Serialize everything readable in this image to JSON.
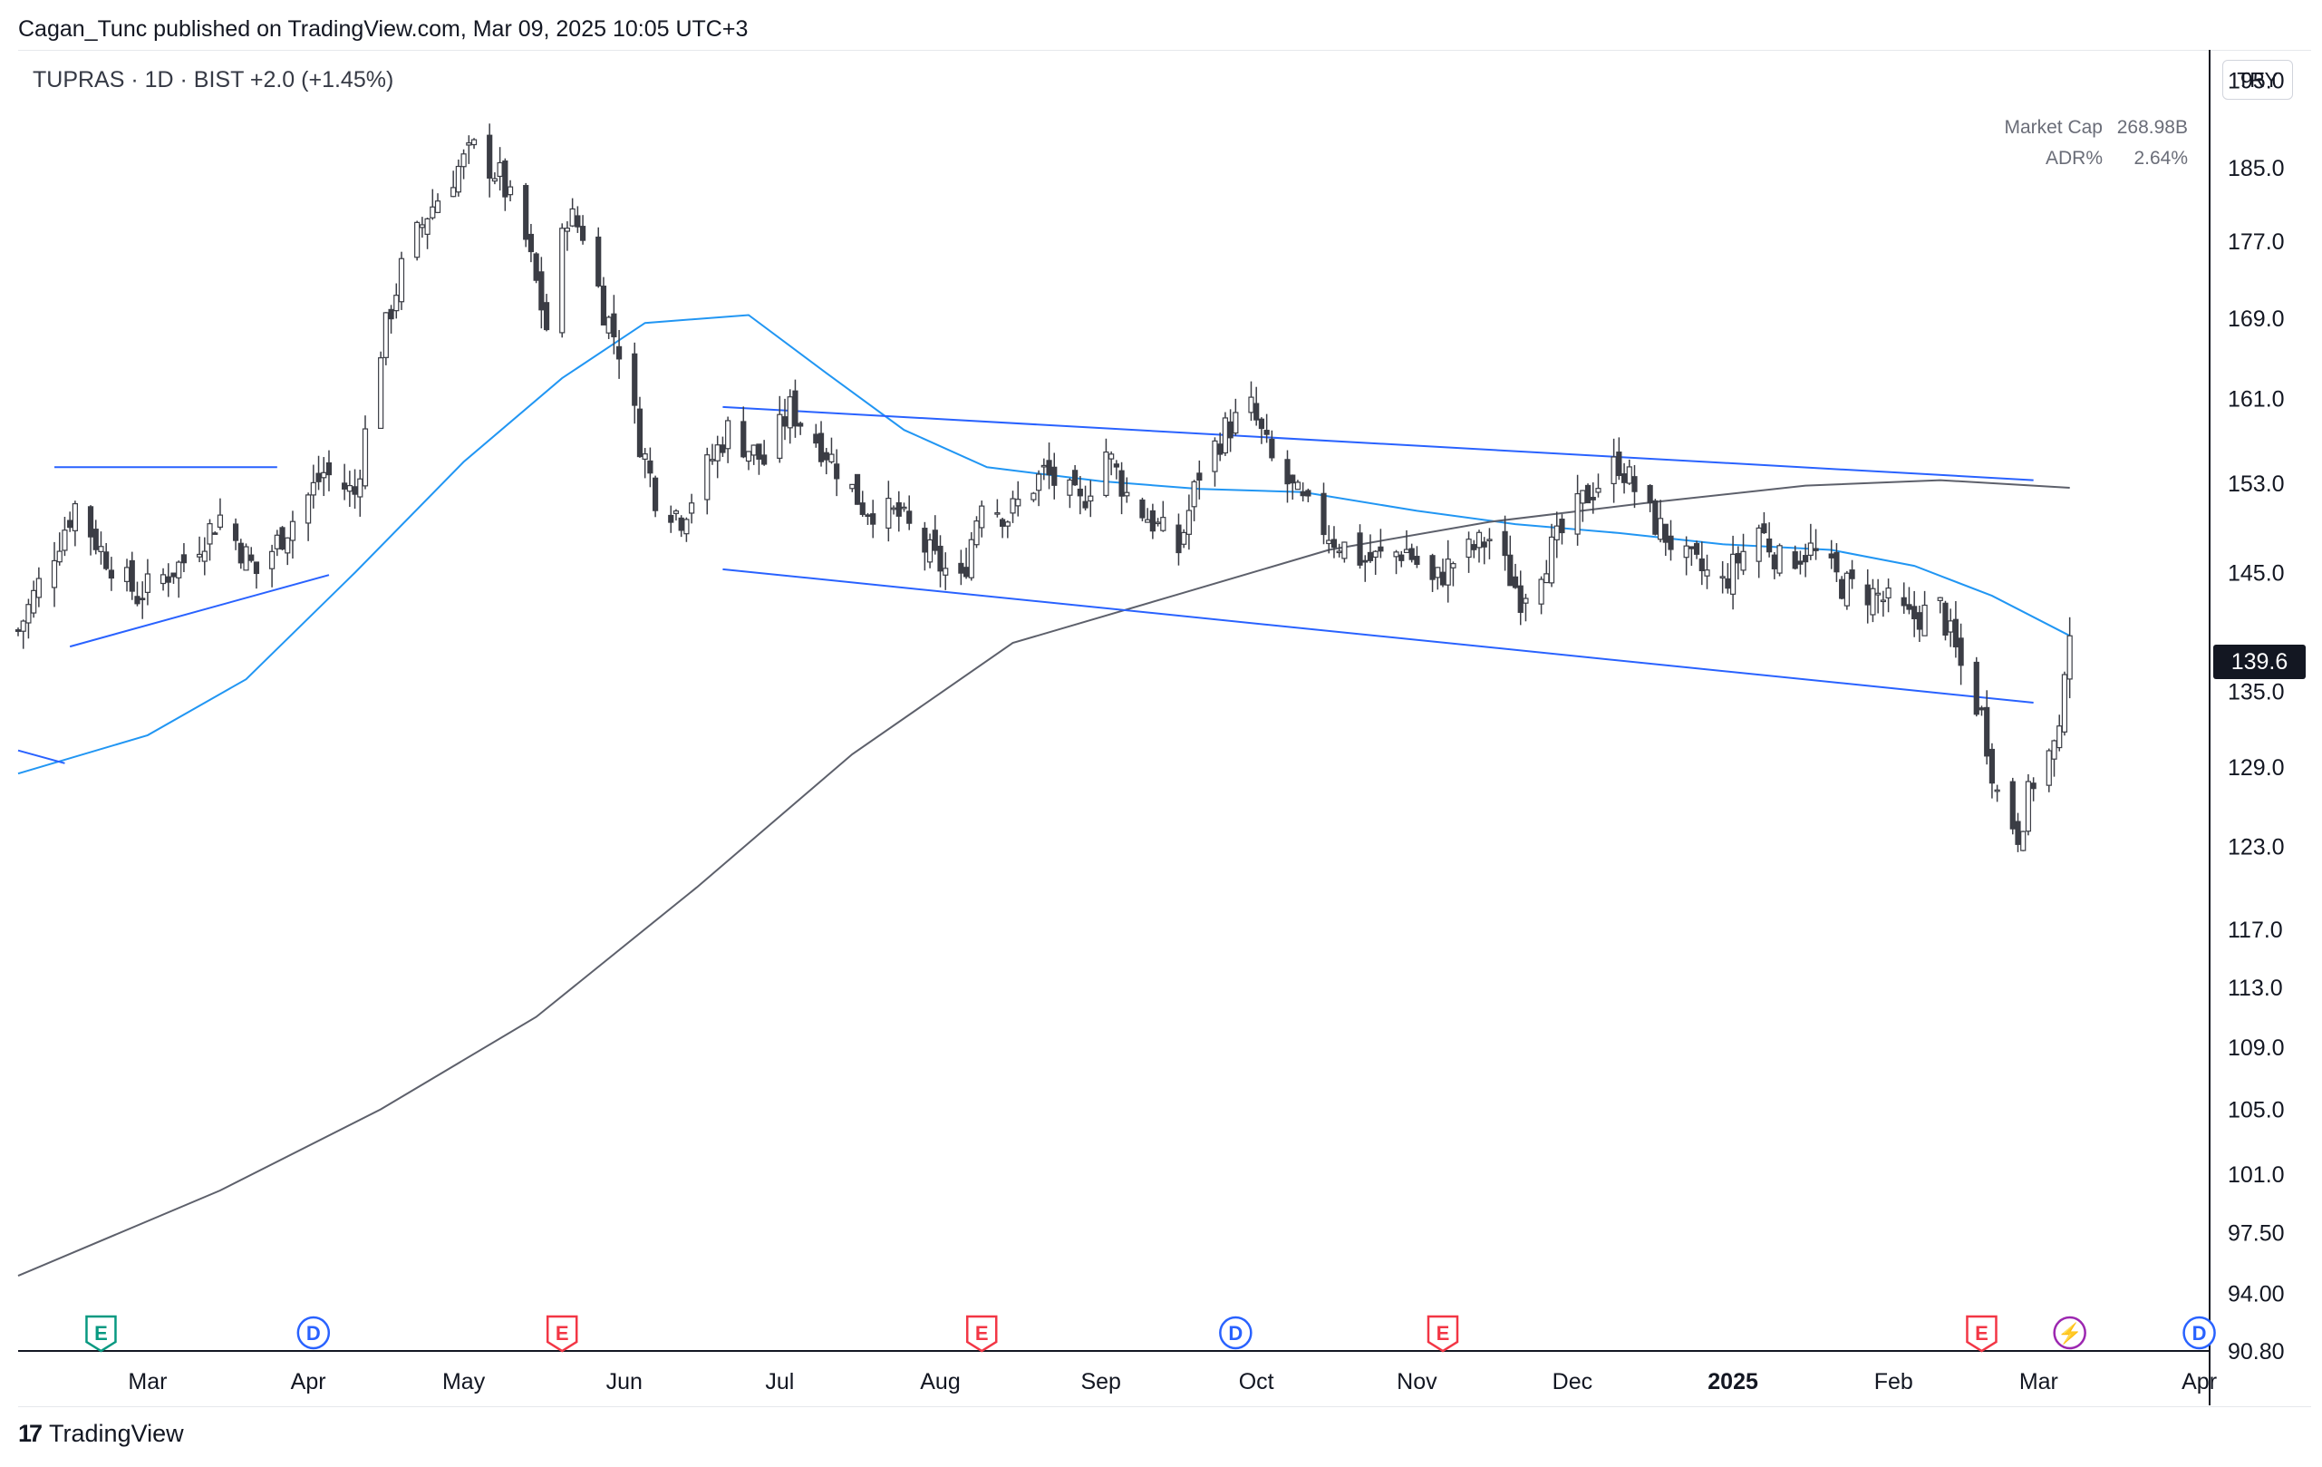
{
  "header": {
    "publisher_line": "Cagan_Tunc published on TradingView.com, Mar 09, 2025 10:05 UTC+3",
    "symbol_line": "TUPRAS · 1D · BIST  +2.0 (+1.45%)"
  },
  "stats": [
    {
      "label": "Market Cap",
      "value": "268.98B"
    },
    {
      "label": "ADR%",
      "value": "2.64%"
    }
  ],
  "currency": "TRY",
  "last_price": "139.6",
  "footer": {
    "brand": "TradingView"
  },
  "colors": {
    "candle_down": "#3b3d45",
    "candle_up_fill": "#ffffff",
    "ma_fast": "#2196f3",
    "ma_slow": "#5d606b",
    "trendline": "#2962ff",
    "event_earnings": "#f23645",
    "event_earnings_green": "#089981",
    "event_dividend": "#2962ff",
    "event_split": "#9c27b0"
  },
  "chart_data": {
    "type": "candlestick",
    "scale": "log",
    "ylim": [
      90.8,
      197.5
    ],
    "y_ticks": [
      "195.0",
      "185.0",
      "177.0",
      "169.0",
      "161.0",
      "153.0",
      "145.0",
      "135.0",
      "129.0",
      "123.0",
      "117.0",
      "113.0",
      "109.0",
      "105.0",
      "101.0",
      "97.50",
      "94.00",
      "90.80"
    ],
    "x_ticks": [
      {
        "label": "Mar",
        "date": "2024-03-01"
      },
      {
        "label": "Apr",
        "date": "2024-04-01"
      },
      {
        "label": "May",
        "date": "2024-05-01"
      },
      {
        "label": "Jun",
        "date": "2024-06-01"
      },
      {
        "label": "Jul",
        "date": "2024-07-01"
      },
      {
        "label": "Aug",
        "date": "2024-08-01"
      },
      {
        "label": "Sep",
        "date": "2024-09-01"
      },
      {
        "label": "Oct",
        "date": "2024-10-01"
      },
      {
        "label": "Nov",
        "date": "2024-11-01"
      },
      {
        "label": "Dec",
        "date": "2024-12-01"
      },
      {
        "label": "2025",
        "date": "2025-01-01",
        "bold": true
      },
      {
        "label": "Feb",
        "date": "2025-02-01"
      },
      {
        "label": "Mar",
        "date": "2025-03-01"
      },
      {
        "label": "Apr",
        "date": "2025-04-01"
      }
    ],
    "date_range": [
      "2024-02-05",
      "2025-04-03"
    ],
    "close_path": [
      [
        "2024-02-05",
        140
      ],
      [
        "2024-02-16",
        151
      ],
      [
        "2024-02-21",
        147
      ],
      [
        "2024-02-28",
        143
      ],
      [
        "2024-03-08",
        146
      ],
      [
        "2024-03-15",
        150
      ],
      [
        "2024-03-22",
        145
      ],
      [
        "2024-03-28",
        149
      ],
      [
        "2024-04-04",
        154
      ],
      [
        "2024-04-10",
        152
      ],
      [
        "2024-04-15",
        166
      ],
      [
        "2024-04-19",
        174
      ],
      [
        "2024-04-24",
        180
      ],
      [
        "2024-04-30",
        185
      ],
      [
        "2024-05-03",
        187
      ],
      [
        "2024-05-08",
        184
      ],
      [
        "2024-05-13",
        177
      ],
      [
        "2024-05-17",
        168
      ],
      [
        "2024-05-21",
        180
      ],
      [
        "2024-05-24",
        178
      ],
      [
        "2024-05-28",
        170
      ],
      [
        "2024-05-31",
        166
      ],
      [
        "2024-06-04",
        157
      ],
      [
        "2024-06-07",
        152
      ],
      [
        "2024-06-12",
        150
      ],
      [
        "2024-06-21",
        158
      ],
      [
        "2024-06-28",
        155
      ],
      [
        "2024-07-03",
        160
      ],
      [
        "2024-07-10",
        156
      ],
      [
        "2024-07-17",
        151
      ],
      [
        "2024-07-24",
        150
      ],
      [
        "2024-07-31",
        146
      ],
      [
        "2024-08-05",
        144
      ],
      [
        "2024-08-09",
        152
      ],
      [
        "2024-08-14",
        150
      ],
      [
        "2024-08-21",
        154
      ],
      [
        "2024-08-28",
        151
      ],
      [
        "2024-09-02",
        156
      ],
      [
        "2024-09-06",
        152
      ],
      [
        "2024-09-12",
        149
      ],
      [
        "2024-09-16",
        147
      ],
      [
        "2024-09-20",
        154
      ],
      [
        "2024-09-25",
        158
      ],
      [
        "2024-09-30",
        160
      ],
      [
        "2024-10-04",
        155
      ],
      [
        "2024-10-10",
        151
      ],
      [
        "2024-10-16",
        148
      ],
      [
        "2024-10-22",
        146
      ],
      [
        "2024-10-30",
        147
      ],
      [
        "2024-11-04",
        144
      ],
      [
        "2024-11-08",
        146
      ],
      [
        "2024-11-15",
        148
      ],
      [
        "2024-11-21",
        143
      ],
      [
        "2024-11-27",
        147
      ],
      [
        "2024-12-04",
        152
      ],
      [
        "2024-12-10",
        155
      ],
      [
        "2024-12-16",
        150
      ],
      [
        "2024-12-23",
        146
      ],
      [
        "2024-12-30",
        144
      ],
      [
        "2025-01-06",
        149
      ],
      [
        "2025-01-10",
        146
      ],
      [
        "2025-01-16",
        147
      ],
      [
        "2025-01-22",
        144
      ],
      [
        "2025-01-29",
        143
      ],
      [
        "2025-02-04",
        141
      ],
      [
        "2025-02-10",
        142
      ],
      [
        "2025-02-14",
        137
      ],
      [
        "2025-02-18",
        133
      ],
      [
        "2025-02-21",
        127
      ],
      [
        "2025-02-25",
        124
      ],
      [
        "2025-02-28",
        128
      ],
      [
        "2025-03-03",
        130
      ],
      [
        "2025-03-05",
        131
      ],
      [
        "2025-03-06",
        137.6
      ],
      [
        "2025-03-07",
        139.6
      ]
    ],
    "series": [
      {
        "id": "ma_fast",
        "points": [
          [
            "2024-02-05",
            128.5
          ],
          [
            "2024-03-01",
            131.5
          ],
          [
            "2024-03-20",
            136
          ],
          [
            "2024-04-10",
            145
          ],
          [
            "2024-05-01",
            155
          ],
          [
            "2024-05-20",
            163
          ],
          [
            "2024-06-05",
            168.5
          ],
          [
            "2024-06-25",
            169.3
          ],
          [
            "2024-07-10",
            163.5
          ],
          [
            "2024-07-25",
            158
          ],
          [
            "2024-08-10",
            154.5
          ],
          [
            "2024-09-01",
            153.2
          ],
          [
            "2024-09-20",
            152.5
          ],
          [
            "2024-10-10",
            152.2
          ],
          [
            "2024-11-01",
            150.5
          ],
          [
            "2024-11-20",
            149.3
          ],
          [
            "2024-12-10",
            148.5
          ],
          [
            "2024-12-30",
            147.5
          ],
          [
            "2025-01-20",
            147
          ],
          [
            "2025-02-05",
            145.6
          ],
          [
            "2025-02-20",
            143
          ],
          [
            "2025-03-07",
            139.6
          ]
        ]
      },
      {
        "id": "ma_slow",
        "points": [
          [
            "2024-02-05",
            95
          ],
          [
            "2024-03-15",
            100
          ],
          [
            "2024-04-15",
            105
          ],
          [
            "2024-05-15",
            111
          ],
          [
            "2024-06-15",
            120
          ],
          [
            "2024-07-15",
            130
          ],
          [
            "2024-08-15",
            139
          ],
          [
            "2024-09-15",
            143
          ],
          [
            "2024-10-15",
            147
          ],
          [
            "2024-11-15",
            149.5
          ],
          [
            "2024-12-15",
            151.2
          ],
          [
            "2025-01-15",
            152.8
          ],
          [
            "2025-02-10",
            153.3
          ],
          [
            "2025-03-07",
            152.6
          ]
        ]
      }
    ],
    "trendlines": [
      {
        "from": [
          "2024-06-20",
          160.2
        ],
        "to": [
          "2025-02-28",
          153.3
        ]
      },
      {
        "from": [
          "2024-06-20",
          145.3
        ],
        "to": [
          "2025-02-28",
          134.1
        ]
      },
      {
        "from": [
          "2024-02-12",
          154.5
        ],
        "to": [
          "2024-03-26",
          154.5
        ]
      },
      {
        "from": [
          "2024-02-15",
          138.7
        ],
        "to": [
          "2024-04-05",
          144.8
        ]
      },
      {
        "from": [
          "2024-02-05",
          130.3
        ],
        "to": [
          "2024-02-14",
          129.3
        ]
      }
    ],
    "events": [
      {
        "type": "E",
        "date": "2024-02-21",
        "color": "earnings_green"
      },
      {
        "type": "D",
        "date": "2024-04-02",
        "color": "dividend"
      },
      {
        "type": "E",
        "date": "2024-05-20",
        "color": "earnings"
      },
      {
        "type": "E",
        "date": "2024-08-09",
        "color": "earnings"
      },
      {
        "type": "D",
        "date": "2024-09-27",
        "color": "dividend"
      },
      {
        "type": "E",
        "date": "2024-11-06",
        "color": "earnings"
      },
      {
        "type": "E",
        "date": "2025-02-18",
        "color": "earnings"
      },
      {
        "type": "⚡",
        "date": "2025-03-07",
        "color": "split"
      },
      {
        "type": "D",
        "date": "2025-04-01",
        "color": "dividend"
      }
    ]
  }
}
